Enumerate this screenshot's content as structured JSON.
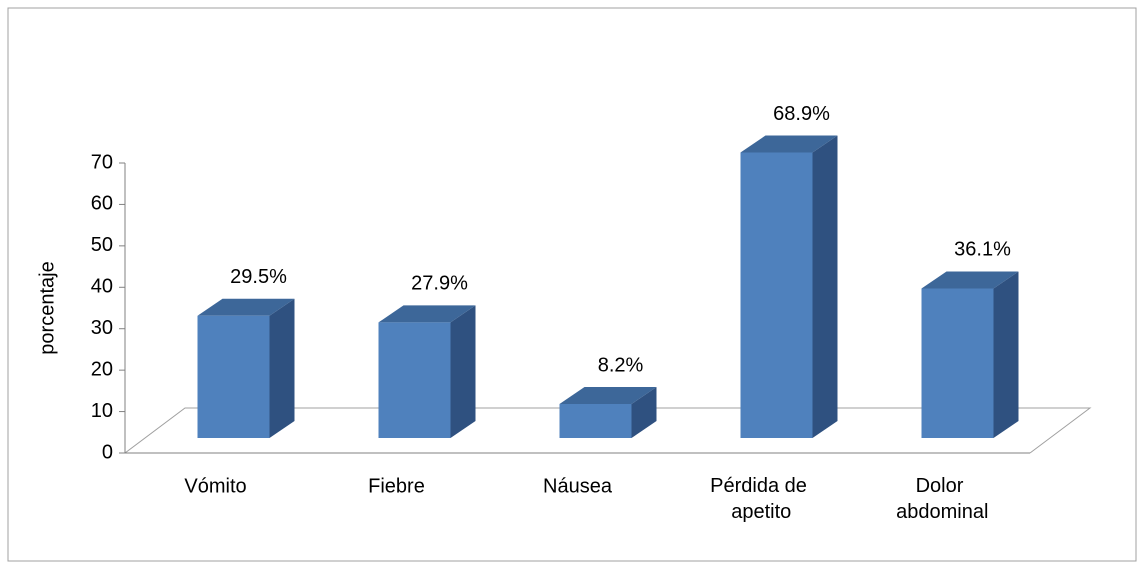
{
  "chart_data": {
    "type": "bar3d",
    "y_label": "porcentaje",
    "categories": [
      "Vómito",
      "Fiebre",
      "Náusea",
      "Pérdida de apetito",
      "Dolor abdominal"
    ],
    "values": [
      29.5,
      27.9,
      8.2,
      68.9,
      36.1
    ],
    "value_labels": [
      "29.5%",
      "27.9%",
      "8.2%",
      "68.9%",
      "36.1%"
    ],
    "color": "#4f81bd",
    "ylim": [
      0,
      70
    ],
    "yticks": [
      0,
      10,
      20,
      30,
      40,
      50,
      60,
      70
    ]
  }
}
